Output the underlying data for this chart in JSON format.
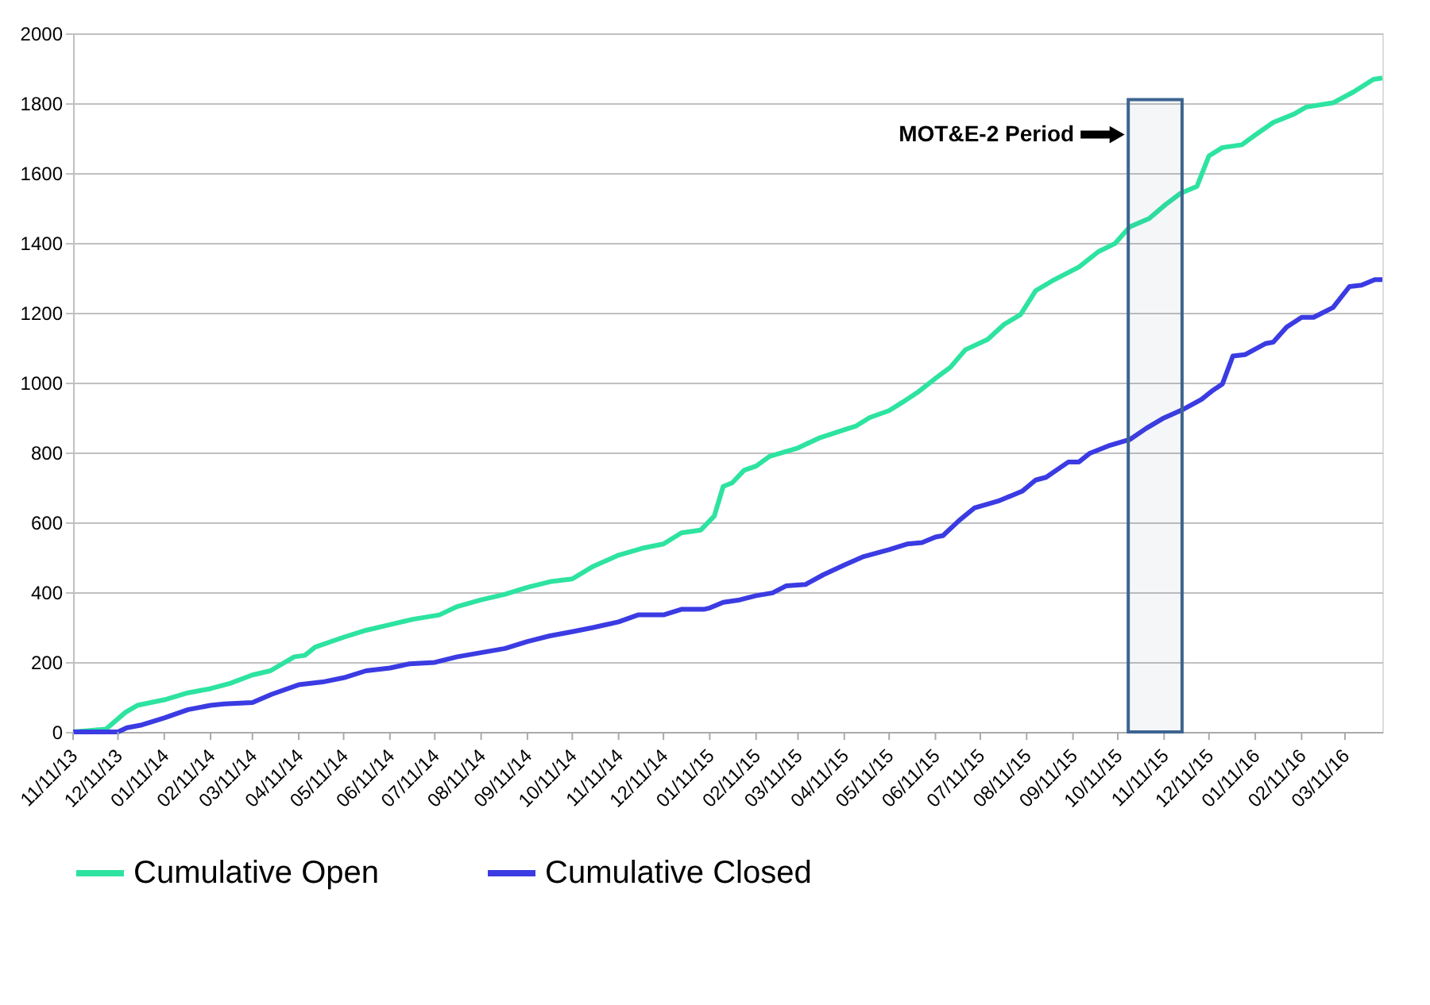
{
  "chart_data": {
    "type": "line",
    "xlim": [
      "2013-11-11",
      "2016-04-05"
    ],
    "xticks": [
      {
        "value": "2013-11-11",
        "label": "11/11/13"
      },
      {
        "value": "2013-12-11",
        "label": "12/11/13"
      },
      {
        "value": "2014-01-11",
        "label": "01/11/14"
      },
      {
        "value": "2014-02-11",
        "label": "02/11/14"
      },
      {
        "value": "2014-03-11",
        "label": "03/11/14"
      },
      {
        "value": "2014-04-11",
        "label": "04/11/14"
      },
      {
        "value": "2014-05-11",
        "label": "05/11/14"
      },
      {
        "value": "2014-06-11",
        "label": "06/11/14"
      },
      {
        "value": "2014-07-11",
        "label": "07/11/14"
      },
      {
        "value": "2014-08-11",
        "label": "08/11/14"
      },
      {
        "value": "2014-09-11",
        "label": "09/11/14"
      },
      {
        "value": "2014-10-11",
        "label": "10/11/14"
      },
      {
        "value": "2014-11-11",
        "label": "11/11/14"
      },
      {
        "value": "2014-12-11",
        "label": "12/11/14"
      },
      {
        "value": "2015-01-11",
        "label": "01/11/15"
      },
      {
        "value": "2015-02-11",
        "label": "02/11/15"
      },
      {
        "value": "2015-03-11",
        "label": "03/11/15"
      },
      {
        "value": "2015-04-11",
        "label": "04/11/15"
      },
      {
        "value": "2015-05-11",
        "label": "05/11/15"
      },
      {
        "value": "2015-06-11",
        "label": "06/11/15"
      },
      {
        "value": "2015-07-11",
        "label": "07/11/15"
      },
      {
        "value": "2015-08-11",
        "label": "08/11/15"
      },
      {
        "value": "2015-09-11",
        "label": "09/11/15"
      },
      {
        "value": "2015-10-11",
        "label": "10/11/15"
      },
      {
        "value": "2015-11-11",
        "label": "11/11/15"
      },
      {
        "value": "2015-12-11",
        "label": "12/11/15"
      },
      {
        "value": "2016-01-11",
        "label": "01/11/16"
      },
      {
        "value": "2016-02-11",
        "label": "02/11/16"
      },
      {
        "value": "2016-03-11",
        "label": "03/11/16"
      }
    ],
    "ylim": [
      0,
      2000
    ],
    "yticks": [
      0,
      200,
      400,
      600,
      800,
      1000,
      1200,
      1400,
      1600,
      1800,
      2000
    ],
    "grid": "y",
    "legend": "bottom",
    "line_style": "solid",
    "marker": "none",
    "bands": [
      {
        "axis": "x",
        "from": "2015-10-18",
        "to": "2015-11-23",
        "label": "MOT&E-2 Period",
        "color": "#3d6490"
      }
    ],
    "series": [
      {
        "name": "Cumulative Open",
        "color": "#2de3a0",
        "x": [
          "2013-11-11",
          "2013-12-03",
          "2013-12-16",
          "2013-12-24",
          "2014-01-11",
          "2014-01-27",
          "2014-02-11",
          "2014-02-24",
          "2014-03-11",
          "2014-03-23",
          "2014-04-08",
          "2014-04-15",
          "2014-04-22",
          "2014-05-11",
          "2014-05-26",
          "2014-06-11",
          "2014-06-27",
          "2014-07-14",
          "2014-07-26",
          "2014-08-11",
          "2014-08-27",
          "2014-09-11",
          "2014-09-26",
          "2014-10-11",
          "2014-10-25",
          "2014-11-11",
          "2014-11-27",
          "2014-12-11",
          "2014-12-23",
          "2015-01-05",
          "2015-01-14",
          "2015-01-20",
          "2015-01-26",
          "2015-02-03",
          "2015-02-11",
          "2015-02-20",
          "2015-03-11",
          "2015-03-25",
          "2015-04-11",
          "2015-04-19",
          "2015-04-28",
          "2015-05-11",
          "2015-05-20",
          "2015-05-30",
          "2015-06-11",
          "2015-06-21",
          "2015-07-01",
          "2015-07-16",
          "2015-07-27",
          "2015-08-07",
          "2015-08-17",
          "2015-08-28",
          "2015-09-15",
          "2015-09-28",
          "2015-10-09",
          "2015-10-19",
          "2015-11-01",
          "2015-11-12",
          "2015-11-22",
          "2015-12-03",
          "2015-12-11",
          "2015-12-20",
          "2016-01-02",
          "2016-01-11",
          "2016-01-23",
          "2016-02-06",
          "2016-02-14",
          "2016-03-03",
          "2016-03-17",
          "2016-03-30",
          "2016-04-05"
        ],
        "values": [
          0,
          8,
          56,
          76,
          92,
          112,
          124,
          139,
          163,
          175,
          215,
          219,
          243,
          271,
          291,
          307,
          323,
          335,
          359,
          378,
          394,
          414,
          430,
          438,
          474,
          506,
          526,
          538,
          570,
          578,
          618,
          703,
          713,
          749,
          761,
          789,
          813,
          841,
          865,
          876,
          900,
          920,
          944,
          972,
          1012,
          1044,
          1094,
          1124,
          1167,
          1195,
          1263,
          1291,
          1331,
          1375,
          1398,
          1446,
          1470,
          1510,
          1542,
          1562,
          1649,
          1673,
          1681,
          1709,
          1745,
          1769,
          1789,
          1801,
          1833,
          1868,
          1872
        ]
      },
      {
        "name": "Cumulative Closed",
        "color": "#3b3be3",
        "x": [
          "2013-11-11",
          "2013-12-11",
          "2013-12-17",
          "2013-12-27",
          "2014-01-11",
          "2014-01-27",
          "2014-02-11",
          "2014-02-20",
          "2014-03-11",
          "2014-03-24",
          "2014-04-11",
          "2014-04-27",
          "2014-05-11",
          "2014-05-26",
          "2014-06-11",
          "2014-06-24",
          "2014-07-11",
          "2014-07-26",
          "2014-08-11",
          "2014-08-27",
          "2014-09-11",
          "2014-09-26",
          "2014-10-11",
          "2014-10-25",
          "2014-11-11",
          "2014-11-24",
          "2014-12-11",
          "2014-12-23",
          "2015-01-07",
          "2015-01-11",
          "2015-01-20",
          "2015-01-31",
          "2015-02-11",
          "2015-02-22",
          "2015-03-03",
          "2015-03-16",
          "2015-03-28",
          "2015-04-11",
          "2015-04-24",
          "2015-05-11",
          "2015-05-23",
          "2015-06-02",
          "2015-06-11",
          "2015-06-16",
          "2015-06-27",
          "2015-07-07",
          "2015-07-23",
          "2015-08-08",
          "2015-08-17",
          "2015-08-24",
          "2015-09-08",
          "2015-09-15",
          "2015-09-22",
          "2015-10-06",
          "2015-10-19",
          "2015-10-30",
          "2015-11-10",
          "2015-11-24",
          "2015-12-06",
          "2015-12-13",
          "2015-12-20",
          "2015-12-27",
          "2016-01-04",
          "2016-01-18",
          "2016-01-23",
          "2016-02-01",
          "2016-02-11",
          "2016-02-19",
          "2016-03-03",
          "2016-03-14",
          "2016-03-22",
          "2016-03-31",
          "2016-04-05"
        ],
        "values": [
          0,
          0,
          12,
          20,
          40,
          64,
          76,
          80,
          84,
          108,
          135,
          143,
          155,
          175,
          183,
          195,
          199,
          215,
          227,
          239,
          259,
          275,
          287,
          299,
          315,
          335,
          335,
          351,
          351,
          355,
          371,
          378,
          390,
          398,
          418,
          422,
          450,
          478,
          502,
          522,
          538,
          542,
          558,
          562,
          606,
          641,
          661,
          689,
          721,
          729,
          773,
          773,
          797,
          821,
          837,
          869,
          897,
          924,
          952,
          976,
          996,
          1076,
          1080,
          1112,
          1116,
          1159,
          1187,
          1187,
          1215,
          1275,
          1279,
          1295,
          1295
        ]
      }
    ]
  }
}
